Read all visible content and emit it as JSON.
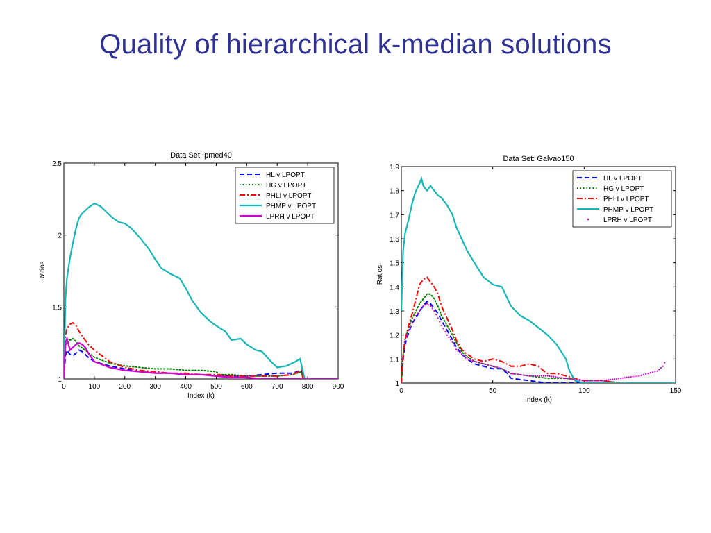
{
  "slide": {
    "title": "Quality of hierarchical k-median solutions"
  },
  "chart_data": [
    {
      "type": "line",
      "title": "Data Set: pmed40",
      "xlabel": "Index (k)",
      "ylabel": "Ratios",
      "xlim": [
        0,
        900
      ],
      "ylim": [
        1,
        2.5
      ],
      "xticks": [
        0,
        100,
        200,
        300,
        400,
        500,
        600,
        700,
        800,
        900
      ],
      "yticks": [
        1,
        1.5,
        2,
        2.5
      ],
      "grid": false,
      "legend_position": "top-right",
      "series": [
        {
          "name": "HL v LPOPT",
          "color": "#0000ff",
          "style": "dashed",
          "x": [
            0,
            5,
            10,
            20,
            30,
            40,
            50,
            60,
            80,
            100,
            150,
            200,
            250,
            300,
            350,
            400,
            450,
            500,
            550,
            600,
            650,
            700,
            750,
            780,
            785,
            900
          ],
          "y": [
            1.0,
            1.16,
            1.2,
            1.17,
            1.16,
            1.18,
            1.2,
            1.19,
            1.15,
            1.12,
            1.09,
            1.07,
            1.05,
            1.04,
            1.04,
            1.03,
            1.03,
            1.02,
            1.02,
            1.02,
            1.03,
            1.04,
            1.04,
            1.06,
            1.0,
            1.0
          ]
        },
        {
          "name": "HG v LPOPT",
          "color": "#008000",
          "style": "dotted",
          "x": [
            0,
            5,
            10,
            20,
            30,
            40,
            50,
            70,
            100,
            150,
            200,
            250,
            300,
            350,
            400,
            450,
            500,
            510,
            550,
            600,
            650,
            700,
            750,
            780,
            785,
            900
          ],
          "y": [
            1.0,
            1.22,
            1.28,
            1.27,
            1.28,
            1.26,
            1.23,
            1.2,
            1.15,
            1.11,
            1.09,
            1.08,
            1.07,
            1.07,
            1.06,
            1.06,
            1.05,
            1.03,
            1.03,
            1.02,
            1.02,
            1.02,
            1.03,
            1.05,
            1.0,
            1.0
          ]
        },
        {
          "name": "PHLI v LPOPT",
          "color": "#ff0000",
          "style": "dashdot",
          "x": [
            0,
            5,
            10,
            20,
            30,
            40,
            50,
            60,
            80,
            100,
            150,
            200,
            250,
            300,
            350,
            400,
            450,
            500,
            550,
            600,
            650,
            700,
            750,
            780,
            785,
            900
          ],
          "y": [
            1.0,
            1.3,
            1.35,
            1.38,
            1.39,
            1.37,
            1.33,
            1.3,
            1.24,
            1.2,
            1.12,
            1.08,
            1.06,
            1.05,
            1.04,
            1.04,
            1.03,
            1.03,
            1.02,
            1.02,
            1.02,
            1.02,
            1.03,
            1.06,
            1.0,
            1.0
          ]
        },
        {
          "name": "PHMP v LPOPT",
          "color": "#17b6b6",
          "style": "solid",
          "x": [
            0,
            5,
            10,
            20,
            30,
            40,
            50,
            60,
            80,
            100,
            120,
            140,
            160,
            180,
            200,
            220,
            250,
            280,
            300,
            320,
            350,
            380,
            400,
            420,
            450,
            480,
            500,
            530,
            550,
            580,
            600,
            630,
            650,
            680,
            700,
            730,
            760,
            775,
            790,
            800,
            900
          ],
          "y": [
            1.0,
            1.55,
            1.7,
            1.84,
            1.95,
            2.05,
            2.12,
            2.15,
            2.19,
            2.22,
            2.2,
            2.16,
            2.12,
            2.09,
            2.08,
            2.05,
            1.98,
            1.9,
            1.83,
            1.77,
            1.73,
            1.7,
            1.63,
            1.55,
            1.46,
            1.4,
            1.37,
            1.33,
            1.27,
            1.28,
            1.24,
            1.2,
            1.19,
            1.12,
            1.08,
            1.09,
            1.12,
            1.14,
            1.0,
            1.0,
            1.0
          ]
        },
        {
          "name": "LPRH v LPOPT",
          "color": "#cc00cc",
          "style": "solid",
          "x": [
            0,
            5,
            10,
            20,
            30,
            40,
            50,
            60,
            70,
            80,
            100,
            150,
            200,
            250,
            300,
            350,
            400,
            450,
            500,
            550,
            600,
            650,
            700,
            900
          ],
          "y": [
            1.0,
            1.25,
            1.28,
            1.2,
            1.22,
            1.24,
            1.25,
            1.24,
            1.22,
            1.18,
            1.12,
            1.08,
            1.06,
            1.05,
            1.04,
            1.04,
            1.03,
            1.03,
            1.02,
            1.01,
            1.01,
            1.0,
            1.0,
            1.0
          ]
        }
      ]
    },
    {
      "type": "line",
      "title": "Data Set: Galvao150",
      "xlabel": "Index (k)",
      "ylabel": "Ratios",
      "xlim": [
        0,
        150
      ],
      "ylim": [
        1,
        1.9
      ],
      "xticks": [
        0,
        50,
        100,
        150
      ],
      "yticks": [
        1,
        1.1,
        1.2,
        1.3,
        1.4,
        1.5,
        1.6,
        1.7,
        1.8,
        1.9
      ],
      "grid": false,
      "legend_position": "top-right",
      "series": [
        {
          "name": "HL v LPOPT",
          "color": "#0000ff",
          "style": "dashed",
          "x": [
            0,
            1,
            2,
            4,
            6,
            8,
            10,
            12,
            14,
            16,
            18,
            20,
            22,
            25,
            28,
            30,
            33,
            36,
            40,
            45,
            50,
            55,
            58,
            60,
            70,
            80,
            90,
            100,
            110,
            120,
            140,
            150
          ],
          "y": [
            1.0,
            1.1,
            1.16,
            1.21,
            1.25,
            1.27,
            1.3,
            1.32,
            1.34,
            1.33,
            1.31,
            1.29,
            1.26,
            1.22,
            1.18,
            1.15,
            1.12,
            1.1,
            1.08,
            1.07,
            1.06,
            1.06,
            1.04,
            1.02,
            1.01,
            1.0,
            1.0,
            1.0,
            1.0,
            1.0,
            1.0,
            1.0
          ]
        },
        {
          "name": "HG v LPOPT",
          "color": "#008000",
          "style": "dotted",
          "x": [
            0,
            1,
            2,
            4,
            6,
            8,
            10,
            12,
            14,
            16,
            18,
            20,
            22,
            25,
            28,
            30,
            33,
            36,
            40,
            45,
            50,
            55,
            60,
            70,
            80,
            90,
            100,
            110,
            120,
            140,
            150
          ],
          "y": [
            1.0,
            1.12,
            1.18,
            1.23,
            1.27,
            1.3,
            1.33,
            1.35,
            1.37,
            1.37,
            1.35,
            1.32,
            1.28,
            1.24,
            1.2,
            1.17,
            1.13,
            1.11,
            1.09,
            1.08,
            1.07,
            1.06,
            1.04,
            1.03,
            1.02,
            1.02,
            1.01,
            1.01,
            1.0,
            1.0,
            1.0
          ]
        },
        {
          "name": "PHLI v LPOPT",
          "color": "#ff0000",
          "style": "dashdot",
          "x": [
            0,
            1,
            2,
            4,
            6,
            8,
            10,
            12,
            14,
            16,
            18,
            20,
            22,
            25,
            28,
            30,
            33,
            36,
            40,
            45,
            50,
            55,
            60,
            65,
            70,
            75,
            78,
            80,
            85,
            90,
            95,
            100,
            110,
            120,
            140,
            150
          ],
          "y": [
            1.0,
            1.12,
            1.18,
            1.24,
            1.29,
            1.35,
            1.41,
            1.43,
            1.44,
            1.42,
            1.4,
            1.37,
            1.32,
            1.27,
            1.22,
            1.18,
            1.14,
            1.12,
            1.1,
            1.09,
            1.1,
            1.09,
            1.07,
            1.07,
            1.08,
            1.07,
            1.05,
            1.04,
            1.04,
            1.03,
            1.02,
            1.01,
            1.01,
            1.0,
            1.0,
            1.0
          ]
        },
        {
          "name": "PHMP v LPOPT",
          "color": "#17b6b6",
          "style": "solid",
          "x": [
            0,
            1,
            2,
            4,
            6,
            8,
            10,
            11,
            12,
            14,
            16,
            18,
            20,
            22,
            25,
            28,
            30,
            33,
            36,
            40,
            45,
            50,
            55,
            60,
            65,
            70,
            75,
            80,
            85,
            90,
            92,
            95,
            100,
            110,
            120,
            130,
            140,
            150
          ],
          "y": [
            1.3,
            1.55,
            1.62,
            1.68,
            1.75,
            1.8,
            1.83,
            1.85,
            1.82,
            1.8,
            1.82,
            1.8,
            1.78,
            1.77,
            1.74,
            1.7,
            1.65,
            1.6,
            1.55,
            1.5,
            1.44,
            1.41,
            1.4,
            1.32,
            1.28,
            1.26,
            1.23,
            1.2,
            1.16,
            1.1,
            1.05,
            1.01,
            1.0,
            1.0,
            1.0,
            1.0,
            1.0,
            1.0
          ]
        },
        {
          "name": "LPRH v LPOPT",
          "color": "#cc00cc",
          "style": "points",
          "x": [
            0,
            1,
            2,
            4,
            6,
            8,
            10,
            12,
            14,
            16,
            18,
            20,
            22,
            25,
            28,
            30,
            33,
            36,
            40,
            45,
            50,
            55,
            60,
            70,
            80,
            90,
            100,
            110,
            120,
            130,
            135,
            140,
            143,
            145
          ],
          "y": [
            1.0,
            1.1,
            1.17,
            1.22,
            1.25,
            1.28,
            1.3,
            1.32,
            1.33,
            1.32,
            1.3,
            1.27,
            1.24,
            1.2,
            1.17,
            1.14,
            1.12,
            1.1,
            1.09,
            1.08,
            1.07,
            1.06,
            1.04,
            1.03,
            1.03,
            1.02,
            1.01,
            1.01,
            1.02,
            1.03,
            1.04,
            1.05,
            1.07,
            1.1
          ]
        }
      ]
    }
  ]
}
